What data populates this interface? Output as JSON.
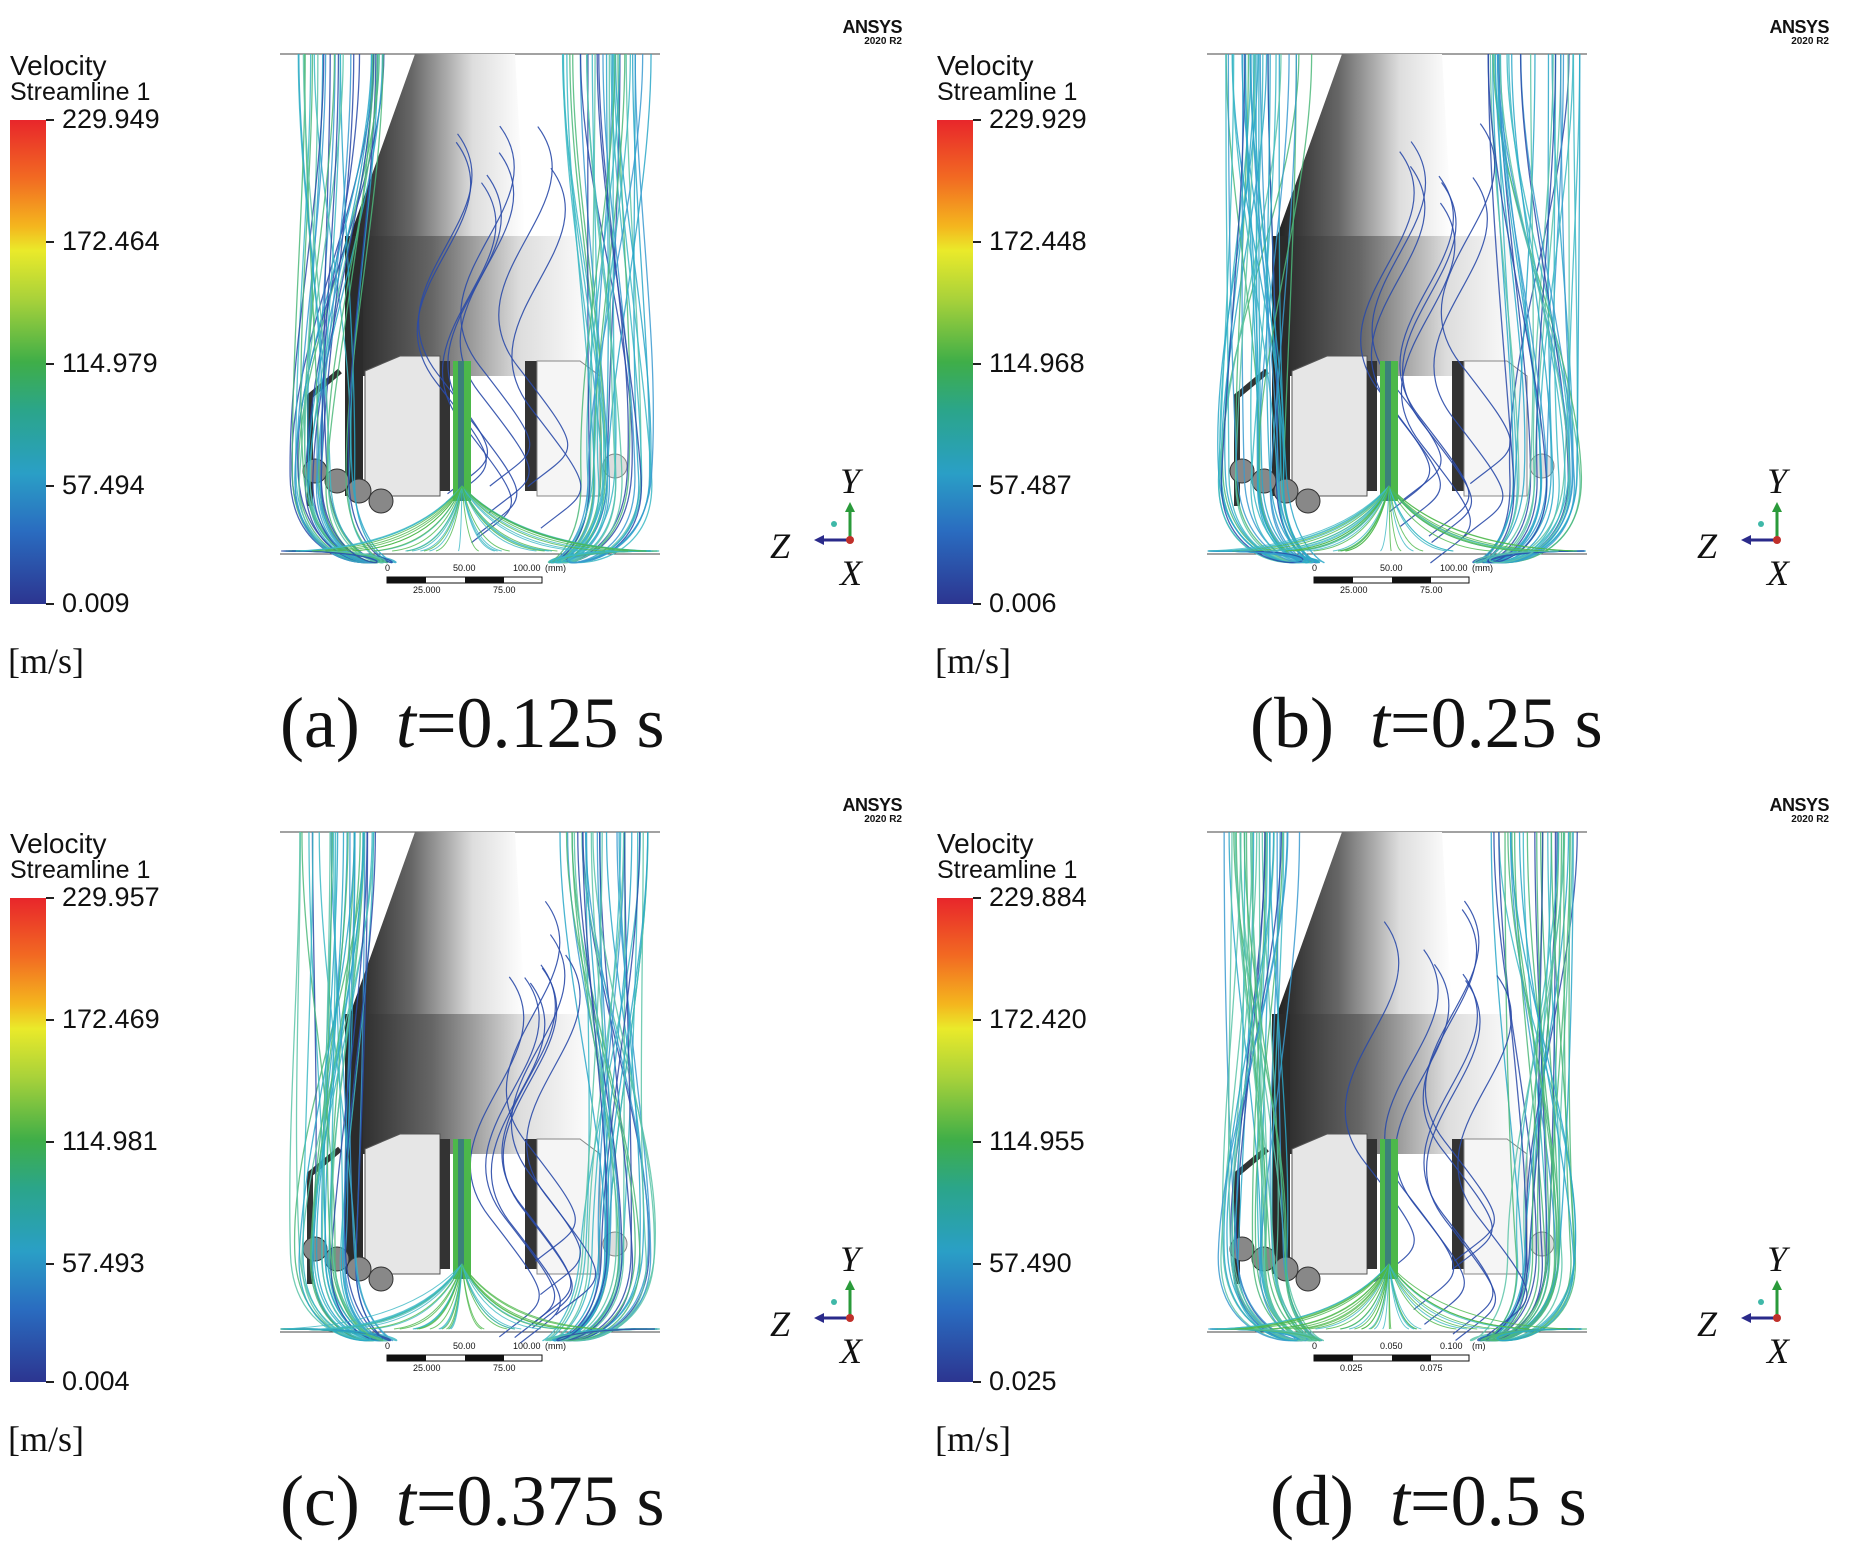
{
  "figure": {
    "panels": [
      {
        "legend": {
          "title": "Velocity",
          "subtitle": "Streamline 1",
          "ticks": [
            "229.949",
            "172.464",
            "114.979",
            "57.494",
            "0.009"
          ],
          "unit": "[m/s]"
        },
        "caption": {
          "letter": "(a)",
          "var": "t",
          "value": "=0.125 s"
        },
        "logo": {
          "brand": "ANSYS",
          "version": "2020 R2"
        },
        "axes": {
          "up": "Y",
          "left": "Z",
          "out": "X"
        },
        "scale": {
          "top": [
            "0",
            "50.00",
            "100.00",
            "(mm)"
          ],
          "bottom": [
            "25.000",
            "75.00"
          ]
        }
      },
      {
        "legend": {
          "title": "Velocity",
          "subtitle": "Streamline 1",
          "ticks": [
            "229.929",
            "172.448",
            "114.968",
            "57.487",
            "0.006"
          ],
          "unit": "[m/s]"
        },
        "caption": {
          "letter": "(b)",
          "var": "t",
          "value": "=0.25 s"
        },
        "logo": {
          "brand": "ANSYS",
          "version": "2020 R2"
        },
        "axes": {
          "up": "Y",
          "left": "Z",
          "out": "X"
        },
        "scale": {
          "top": [
            "0",
            "50.00",
            "100.00",
            "(mm)"
          ],
          "bottom": [
            "25.000",
            "75.00"
          ]
        }
      },
      {
        "legend": {
          "title": "Velocity",
          "subtitle": "Streamline 1",
          "ticks": [
            "229.957",
            "172.469",
            "114.981",
            "57.493",
            "0.004"
          ],
          "unit": "[m/s]"
        },
        "caption": {
          "letter": "(c)",
          "var": "t",
          "value": "=0.375 s"
        },
        "logo": {
          "brand": "ANSYS",
          "version": "2020 R2"
        },
        "axes": {
          "up": "Y",
          "left": "Z",
          "out": "X"
        },
        "scale": {
          "top": [
            "0",
            "50.00",
            "100.00",
            "(mm)"
          ],
          "bottom": [
            "25.000",
            "75.00"
          ]
        }
      },
      {
        "legend": {
          "title": "Velocity",
          "subtitle": "Streamline 1",
          "ticks": [
            "229.884",
            "172.420",
            "114.955",
            "57.490",
            "0.025"
          ],
          "unit": "[m/s]"
        },
        "caption": {
          "letter": "(d)",
          "var": "t",
          "value": "=0.5 s"
        },
        "logo": {
          "brand": "ANSYS",
          "version": "2020 R2"
        },
        "axes": {
          "up": "Y",
          "left": "Z",
          "out": "X"
        },
        "scale": {
          "top": [
            "0",
            "0.050",
            "0.100",
            "(m)"
          ],
          "bottom": [
            "0.025",
            "0.075"
          ]
        }
      }
    ],
    "colors": {
      "streamline_cyan": "#3cb8c4",
      "streamline_green": "#4cb84a",
      "streamline_blue": "#2a4aa8",
      "body_dark": "#2b2b2b",
      "body_light": "#f2f2f2"
    }
  }
}
